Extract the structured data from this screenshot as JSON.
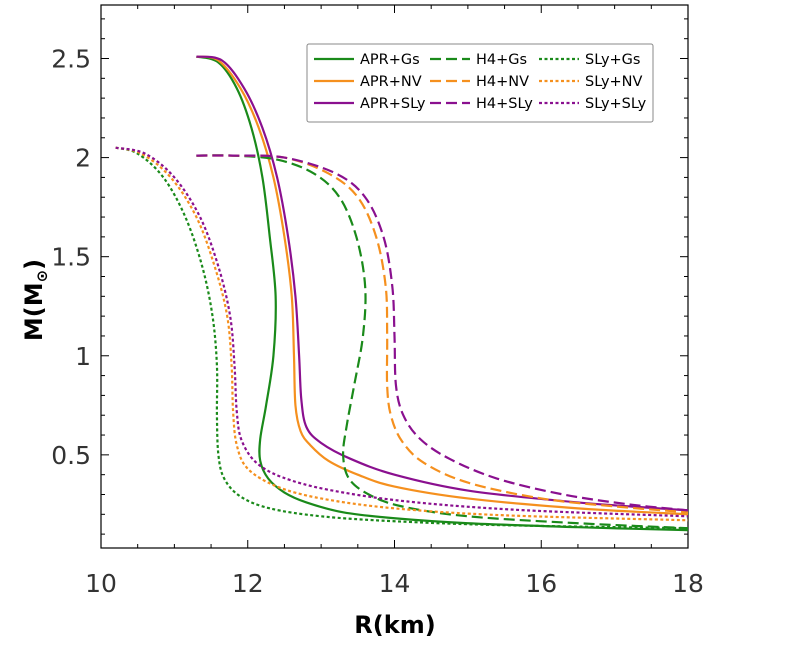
{
  "chart_data": {
    "type": "line",
    "xlabel": "R(km)",
    "ylabel_main": "M(M",
    "ylabel_sub": "⊙",
    "ylabel_close": ")",
    "xlim": [
      10,
      18
    ],
    "ylim": [
      0.03,
      2.77
    ],
    "xticks": [
      10,
      12,
      14,
      16,
      18
    ],
    "xtick_labels": [
      "10",
      "12",
      "14",
      "16",
      "18"
    ],
    "yticks": [
      0.5,
      1,
      1.5,
      2,
      2.5
    ],
    "ytick_labels": [
      "0.5",
      "1",
      "1.5",
      "2",
      "2.5"
    ],
    "grid": false,
    "legend_position": "top-right",
    "colors": {
      "Gs": "#1a8a1a",
      "NV": "#f5901e",
      "SLy": "#8a108f"
    },
    "series": [
      {
        "name": "APR+Gs",
        "color": "#1a8a1a",
        "dash": "solid",
        "points": [
          [
            11.3,
            2.51
          ],
          [
            11.6,
            2.48
          ],
          [
            11.85,
            2.35
          ],
          [
            12.05,
            2.15
          ],
          [
            12.2,
            1.9
          ],
          [
            12.3,
            1.6
          ],
          [
            12.38,
            1.3
          ],
          [
            12.35,
            1.0
          ],
          [
            12.25,
            0.75
          ],
          [
            12.17,
            0.58
          ],
          [
            12.17,
            0.47
          ],
          [
            12.28,
            0.38
          ],
          [
            12.5,
            0.31
          ],
          [
            12.8,
            0.26
          ],
          [
            13.3,
            0.21
          ],
          [
            14.0,
            0.18
          ],
          [
            15.0,
            0.155
          ],
          [
            16.5,
            0.135
          ],
          [
            18.0,
            0.12
          ]
        ]
      },
      {
        "name": "APR+NV",
        "color": "#f5901e",
        "dash": "solid",
        "points": [
          [
            11.3,
            2.51
          ],
          [
            11.6,
            2.49
          ],
          [
            11.9,
            2.35
          ],
          [
            12.15,
            2.15
          ],
          [
            12.35,
            1.9
          ],
          [
            12.5,
            1.6
          ],
          [
            12.6,
            1.3
          ],
          [
            12.63,
            1.0
          ],
          [
            12.65,
            0.75
          ],
          [
            12.72,
            0.62
          ],
          [
            12.85,
            0.55
          ],
          [
            13.1,
            0.47
          ],
          [
            13.5,
            0.4
          ],
          [
            14.0,
            0.34
          ],
          [
            15.0,
            0.28
          ],
          [
            16.5,
            0.23
          ],
          [
            18.0,
            0.2
          ]
        ]
      },
      {
        "name": "APR+SLy",
        "color": "#8a108f",
        "dash": "solid",
        "points": [
          [
            11.3,
            2.51
          ],
          [
            11.65,
            2.49
          ],
          [
            11.95,
            2.35
          ],
          [
            12.2,
            2.15
          ],
          [
            12.4,
            1.9
          ],
          [
            12.55,
            1.6
          ],
          [
            12.65,
            1.3
          ],
          [
            12.7,
            1.0
          ],
          [
            12.73,
            0.78
          ],
          [
            12.8,
            0.64
          ],
          [
            13.0,
            0.56
          ],
          [
            13.4,
            0.48
          ],
          [
            14.0,
            0.4
          ],
          [
            15.0,
            0.32
          ],
          [
            16.5,
            0.26
          ],
          [
            18.0,
            0.22
          ]
        ]
      },
      {
        "name": "H4+Gs",
        "color": "#1a8a1a",
        "dash": "longdash",
        "points": [
          [
            11.3,
            2.01
          ],
          [
            11.8,
            2.01
          ],
          [
            12.4,
            1.99
          ],
          [
            12.9,
            1.92
          ],
          [
            13.25,
            1.8
          ],
          [
            13.48,
            1.6
          ],
          [
            13.6,
            1.35
          ],
          [
            13.57,
            1.1
          ],
          [
            13.45,
            0.85
          ],
          [
            13.35,
            0.65
          ],
          [
            13.3,
            0.5
          ],
          [
            13.38,
            0.38
          ],
          [
            13.65,
            0.3
          ],
          [
            14.1,
            0.24
          ],
          [
            15.0,
            0.19
          ],
          [
            16.5,
            0.155
          ],
          [
            18.0,
            0.13
          ]
        ]
      },
      {
        "name": "H4+NV",
        "color": "#f5901e",
        "dash": "longdash",
        "points": [
          [
            11.3,
            2.01
          ],
          [
            11.8,
            2.01
          ],
          [
            12.5,
            2.0
          ],
          [
            13.1,
            1.92
          ],
          [
            13.5,
            1.8
          ],
          [
            13.75,
            1.6
          ],
          [
            13.88,
            1.35
          ],
          [
            13.9,
            1.1
          ],
          [
            13.9,
            0.85
          ],
          [
            13.95,
            0.7
          ],
          [
            14.1,
            0.57
          ],
          [
            14.4,
            0.46
          ],
          [
            15.0,
            0.36
          ],
          [
            16.0,
            0.28
          ],
          [
            17.0,
            0.24
          ],
          [
            18.0,
            0.21
          ]
        ]
      },
      {
        "name": "H4+SLy",
        "color": "#8a108f",
        "dash": "longdash",
        "points": [
          [
            11.3,
            2.01
          ],
          [
            11.8,
            2.01
          ],
          [
            12.5,
            2.0
          ],
          [
            13.2,
            1.92
          ],
          [
            13.6,
            1.8
          ],
          [
            13.85,
            1.6
          ],
          [
            13.97,
            1.35
          ],
          [
            14.0,
            1.1
          ],
          [
            14.02,
            0.85
          ],
          [
            14.12,
            0.7
          ],
          [
            14.35,
            0.58
          ],
          [
            14.75,
            0.48
          ],
          [
            15.4,
            0.38
          ],
          [
            16.3,
            0.3
          ],
          [
            17.2,
            0.25
          ],
          [
            18.0,
            0.22
          ]
        ]
      },
      {
        "name": "SLy+Gs",
        "color": "#1a8a1a",
        "dash": "dotted",
        "points": [
          [
            10.2,
            2.05
          ],
          [
            10.5,
            2.02
          ],
          [
            10.85,
            1.9
          ],
          [
            11.15,
            1.7
          ],
          [
            11.38,
            1.45
          ],
          [
            11.52,
            1.2
          ],
          [
            11.58,
            0.95
          ],
          [
            11.58,
            0.7
          ],
          [
            11.6,
            0.5
          ],
          [
            11.68,
            0.38
          ],
          [
            11.9,
            0.29
          ],
          [
            12.3,
            0.23
          ],
          [
            13.0,
            0.19
          ],
          [
            14.0,
            0.165
          ],
          [
            15.5,
            0.145
          ],
          [
            18.0,
            0.13
          ]
        ]
      },
      {
        "name": "SLy+NV",
        "color": "#f5901e",
        "dash": "dotted",
        "points": [
          [
            10.2,
            2.05
          ],
          [
            10.55,
            2.02
          ],
          [
            10.95,
            1.9
          ],
          [
            11.3,
            1.7
          ],
          [
            11.55,
            1.45
          ],
          [
            11.72,
            1.2
          ],
          [
            11.78,
            0.95
          ],
          [
            11.8,
            0.72
          ],
          [
            11.85,
            0.55
          ],
          [
            12.0,
            0.43
          ],
          [
            12.4,
            0.34
          ],
          [
            13.0,
            0.28
          ],
          [
            14.0,
            0.23
          ],
          [
            15.5,
            0.195
          ],
          [
            18.0,
            0.17
          ]
        ]
      },
      {
        "name": "SLy+SLy",
        "color": "#8a108f",
        "dash": "dotted",
        "points": [
          [
            10.2,
            2.05
          ],
          [
            10.6,
            2.02
          ],
          [
            11.0,
            1.9
          ],
          [
            11.35,
            1.7
          ],
          [
            11.6,
            1.45
          ],
          [
            11.76,
            1.2
          ],
          [
            11.82,
            0.95
          ],
          [
            11.85,
            0.72
          ],
          [
            11.92,
            0.57
          ],
          [
            12.15,
            0.45
          ],
          [
            12.6,
            0.37
          ],
          [
            13.3,
            0.31
          ],
          [
            14.3,
            0.26
          ],
          [
            15.8,
            0.22
          ],
          [
            18.0,
            0.19
          ]
        ]
      }
    ],
    "legend_columns": [
      [
        "APR+Gs",
        "APR+NV",
        "APR+SLy"
      ],
      [
        "H4+Gs",
        "H4+NV",
        "H4+SLy"
      ],
      [
        "SLy+Gs",
        "SLy+NV",
        "SLy+SLy"
      ]
    ]
  }
}
